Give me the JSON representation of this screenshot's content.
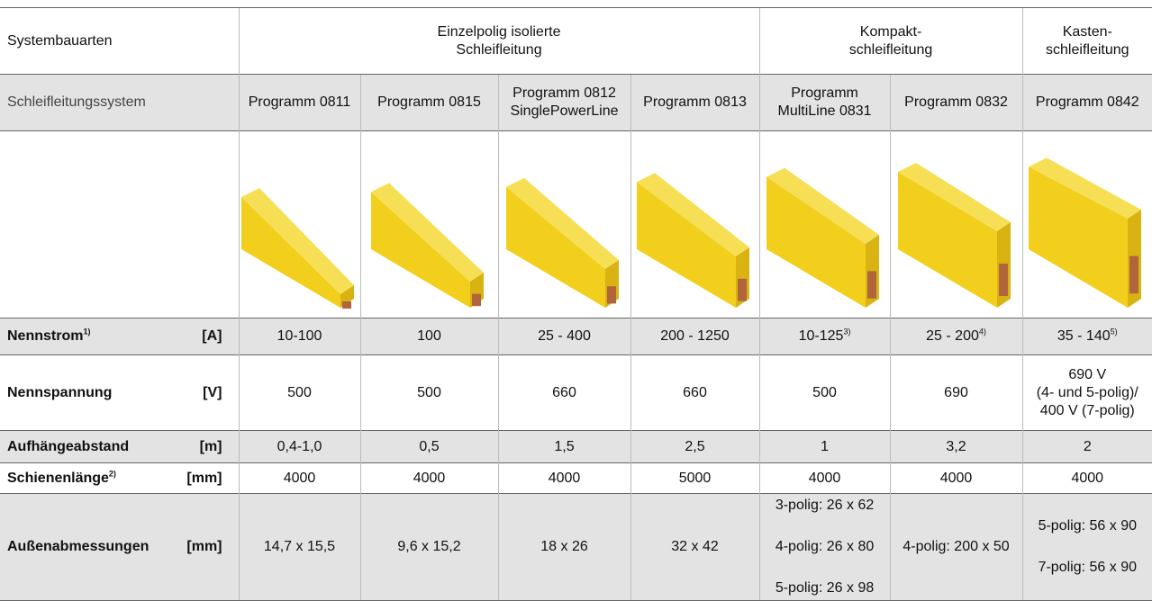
{
  "header": {
    "title": "Systembauarten",
    "groups": [
      [
        "Einzelpolig isolierte",
        "Schleifleitung"
      ],
      [
        "Kompakt-",
        "schleifleitung"
      ],
      [
        "Kasten-",
        "schleifleitung"
      ]
    ]
  },
  "systems_label": "Schleifleitungssystem",
  "systems": [
    [
      "Programm 0811"
    ],
    [
      "Programm 0815"
    ],
    [
      "Programm 0812",
      "SinglePowerLine"
    ],
    [
      "Programm 0813"
    ],
    [
      "Programm",
      "MultiLine 0831"
    ],
    [
      "Programm 0832"
    ],
    [
      "Programm 0842"
    ]
  ],
  "rows": [
    {
      "label": "Nennstrom",
      "sup": "1)",
      "unit": "[A]",
      "cells": [
        {
          "lines": [
            "10-100"
          ]
        },
        {
          "lines": [
            "100"
          ]
        },
        {
          "lines": [
            "25 - 400"
          ]
        },
        {
          "lines": [
            "200 - 1250"
          ]
        },
        {
          "lines": [
            "10-125"
          ],
          "sup": "3)"
        },
        {
          "lines": [
            "25 - 200"
          ],
          "sup": "4)"
        },
        {
          "lines": [
            "35 - 140"
          ],
          "sup": "5)"
        }
      ]
    },
    {
      "label": "Nennspannung",
      "unit": "[V]",
      "cells": [
        {
          "lines": [
            "500"
          ]
        },
        {
          "lines": [
            "500"
          ]
        },
        {
          "lines": [
            "660"
          ]
        },
        {
          "lines": [
            "660"
          ]
        },
        {
          "lines": [
            "500"
          ]
        },
        {
          "lines": [
            "690"
          ]
        },
        {
          "lines": [
            "690 V",
            "(4- und 5-polig)/",
            "400 V (7-polig)"
          ]
        }
      ]
    },
    {
      "label": "Aufhängeabstand",
      "unit": "[m]",
      "cells": [
        {
          "lines": [
            "0,4-1,0"
          ]
        },
        {
          "lines": [
            "0,5"
          ]
        },
        {
          "lines": [
            "1,5"
          ]
        },
        {
          "lines": [
            "2,5"
          ]
        },
        {
          "lines": [
            "1"
          ]
        },
        {
          "lines": [
            "3,2"
          ]
        },
        {
          "lines": [
            "2"
          ]
        }
      ]
    },
    {
      "label": "Schienenlänge",
      "sup": "2)",
      "unit": "[mm]",
      "cells": [
        {
          "lines": [
            "4000"
          ]
        },
        {
          "lines": [
            "4000"
          ]
        },
        {
          "lines": [
            "4000"
          ]
        },
        {
          "lines": [
            "5000"
          ]
        },
        {
          "lines": [
            "4000"
          ]
        },
        {
          "lines": [
            "4000"
          ]
        },
        {
          "lines": [
            "4000"
          ]
        }
      ]
    },
    {
      "label": "Außenabmessungen",
      "unit": "[mm]",
      "cells": [
        {
          "lines": [
            "14,7 x 15,5"
          ]
        },
        {
          "lines": [
            "9,6 x 15,2"
          ]
        },
        {
          "lines": [
            "18 x 26"
          ]
        },
        {
          "lines": [
            "32 x 42"
          ]
        },
        {
          "lines": [
            "3-polig: 26 x 62",
            "4-polig: 26 x 80",
            "5-polig: 26 x 98"
          ]
        },
        {
          "lines": [
            "4-polig: 200 x 50"
          ]
        },
        {
          "lines": [
            "5-polig: 56 x 90",
            "7-polig: 56 x 90"
          ]
        }
      ]
    }
  ]
}
